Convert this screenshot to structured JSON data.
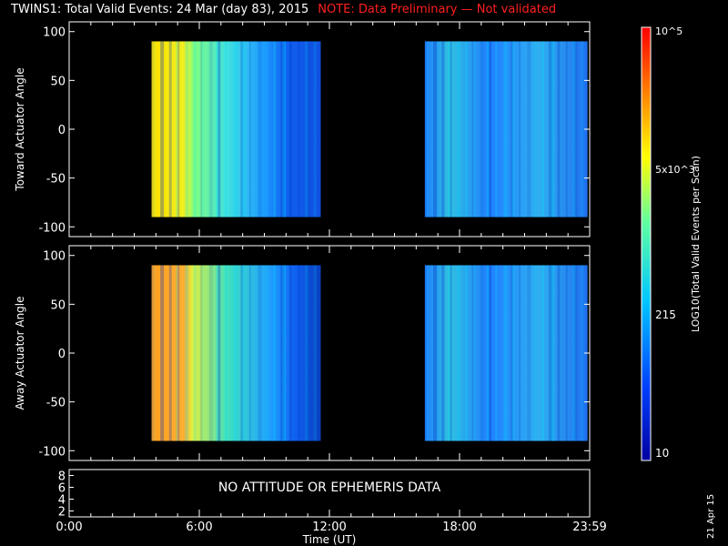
{
  "header": {
    "title": "TWINS1: Total Valid Events: 24 Mar (day  83), 2015",
    "note": "NOTE: Data Preliminary — Not validated"
  },
  "footnote": "21 Apr 15",
  "chart_data": [
    {
      "type": "heatmap",
      "panel": "top",
      "ylabel": "Toward Actuator Angle",
      "ylim": [
        -110,
        110
      ],
      "yticks": [
        100,
        50,
        0,
        -50,
        -100
      ],
      "xlim_hours": [
        0,
        24
      ],
      "data_blocks_hours": [
        [
          3.8,
          11.6
        ],
        [
          16.4,
          23.9
        ]
      ],
      "yextent": [
        -90,
        90
      ]
    },
    {
      "type": "heatmap",
      "panel": "middle",
      "ylabel": "Away Actuator Angle",
      "ylim": [
        -110,
        110
      ],
      "yticks": [
        100,
        50,
        0,
        -50,
        -100
      ],
      "xlim_hours": [
        0,
        24
      ],
      "data_blocks_hours": [
        [
          3.8,
          11.6
        ],
        [
          16.4,
          23.9
        ]
      ],
      "yextent": [
        -90,
        90
      ]
    },
    {
      "type": "table",
      "panel": "bottom",
      "yticks": [
        8,
        6,
        4,
        2
      ],
      "message": "NO ATTITUDE OR EPHEMERIS DATA",
      "xlabel": "Time (UT)",
      "xticks": [
        "0:00",
        "6:00",
        "12:00",
        "18:00",
        "23:59"
      ]
    }
  ],
  "colorbar": {
    "label": "LOG10(Total Valid Events per Scan)",
    "ticks": [
      "10",
      "215",
      "5x10^3",
      "10^5"
    ],
    "colors": [
      "#0000a0",
      "#0050ff",
      "#00d0ff",
      "#80ff80",
      "#ffff00",
      "#ff8000",
      "#ff0000"
    ]
  }
}
